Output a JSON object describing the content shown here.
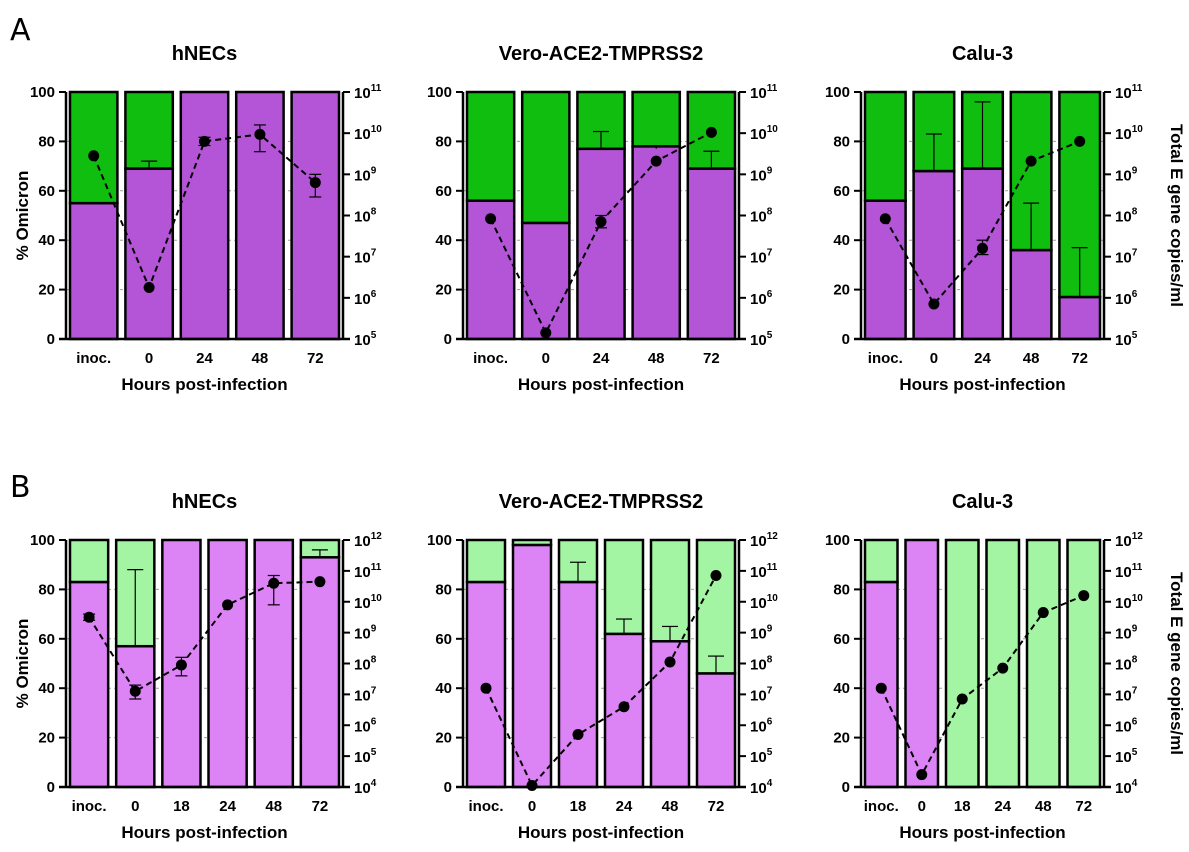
{
  "panels": [
    {
      "letter": "A"
    },
    {
      "letter": "B"
    }
  ],
  "colors": {
    "omicron_A": "#b355d6",
    "other_A": "#0fbe0f",
    "omicron_B": "#dc83f5",
    "other_B": "#a3f5a3",
    "copies_marker": "#000000"
  },
  "chart_data": [
    {
      "type": "bar",
      "panel": "A",
      "title": "hNECs",
      "xlabel": "Hours post-infection",
      "ylabel": "% Omicron",
      "y2label": "",
      "categories": [
        "inoc.",
        "0",
        "24",
        "48",
        "72"
      ],
      "ylim": [
        0,
        100
      ],
      "y2scale": "log",
      "y2lim_exponent": [
        5,
        11
      ],
      "y2_tick_labels": [
        "10^5",
        "10^6",
        "10^7",
        "10^8",
        "10^9",
        "10^10",
        "10^11"
      ],
      "grid": "dashed horizontal",
      "series": [
        {
          "values": [
            55,
            69,
            100,
            100,
            100
          ],
          "error_bars": [
            null,
            [
              69,
              72
            ],
            null,
            null,
            null
          ],
          "color": "omicron_A"
        },
        {
          "values": [
            45,
            31,
            0,
            0,
            0
          ],
          "color": "other_A"
        }
      ],
      "line": {
        "log10_values": [
          9.45,
          6.25,
          9.8,
          9.97,
          8.8
        ],
        "error_bars": [
          null,
          null,
          [
            9.7,
            9.9
          ],
          [
            9.55,
            10.2
          ],
          [
            8.45,
            9.0
          ]
        ]
      }
    },
    {
      "type": "bar",
      "panel": "A",
      "title": "Vero-ACE2-TMPRSS2",
      "xlabel": "Hours post-infection",
      "ylabel": "",
      "y2label": "",
      "categories": [
        "inoc.",
        "0",
        "24",
        "48",
        "72"
      ],
      "ylim": [
        0,
        100
      ],
      "y2scale": "log",
      "y2lim_exponent": [
        5,
        11
      ],
      "y2_tick_labels": [
        "10^5",
        "10^6",
        "10^7",
        "10^8",
        "10^9",
        "10^10",
        "10^11"
      ],
      "grid": "dashed horizontal",
      "series": [
        {
          "values": [
            56,
            47,
            77,
            78,
            69
          ],
          "error_bars": [
            null,
            null,
            [
              77,
              84
            ],
            [
              77,
              78
            ],
            [
              69,
              76
            ]
          ],
          "color": "omicron_A"
        },
        {
          "values": [
            44,
            53,
            23,
            22,
            31
          ],
          "color": "other_A"
        }
      ],
      "line": {
        "log10_values": [
          7.92,
          5.15,
          7.85,
          9.32,
          10.02
        ],
        "error_bars": [
          null,
          null,
          [
            7.7,
            8.0
          ],
          null,
          null
        ]
      }
    },
    {
      "type": "bar",
      "panel": "A",
      "title": "Calu-3",
      "xlabel": "Hours post-infection",
      "ylabel": "",
      "y2label": "Total E gene copies/ml",
      "categories": [
        "inoc.",
        "0",
        "24",
        "48",
        "72"
      ],
      "ylim": [
        0,
        100
      ],
      "y2scale": "log",
      "y2lim_exponent": [
        5,
        11
      ],
      "y2_tick_labels": [
        "10^5",
        "10^6",
        "10^7",
        "10^8",
        "10^9",
        "10^10",
        "10^11"
      ],
      "grid": "dashed horizontal",
      "series": [
        {
          "values": [
            56,
            68,
            69,
            36,
            17
          ],
          "error_bars": [
            null,
            [
              68,
              83
            ],
            [
              69,
              96
            ],
            [
              36,
              55
            ],
            [
              17,
              37
            ]
          ],
          "color": "omicron_A"
        },
        {
          "values": [
            44,
            32,
            31,
            64,
            83
          ],
          "color": "other_A"
        }
      ],
      "line": {
        "log10_values": [
          7.92,
          5.85,
          7.2,
          9.32,
          9.8
        ],
        "error_bars": [
          null,
          null,
          [
            7.05,
            7.4
          ],
          null,
          null
        ]
      }
    },
    {
      "type": "bar",
      "panel": "B",
      "title": "hNECs",
      "xlabel": "Hours post-infection",
      "ylabel": "% Omicron",
      "y2label": "",
      "categories": [
        "inoc.",
        "0",
        "18",
        "24",
        "48",
        "72"
      ],
      "ylim": [
        0,
        100
      ],
      "y2scale": "log",
      "y2lim_exponent": [
        4,
        12
      ],
      "y2_tick_labels": [
        "10^4",
        "10^5",
        "10^6",
        "10^7",
        "10^8",
        "10^9",
        "10^10",
        "10^11",
        "10^12"
      ],
      "grid": "dashed horizontal",
      "series": [
        {
          "values": [
            83,
            57,
            100,
            100,
            100,
            93
          ],
          "error_bars": [
            null,
            [
              57,
              88
            ],
            null,
            null,
            null,
            [
              93,
              96
            ]
          ],
          "color": "omicron_B"
        },
        {
          "values": [
            17,
            43,
            0,
            0,
            0,
            7
          ],
          "color": "other_B"
        }
      ],
      "line": {
        "log10_values": [
          9.5,
          7.1,
          7.95,
          9.9,
          10.6,
          10.65
        ],
        "error_bars": [
          [
            9.4,
            9.6
          ],
          [
            6.85,
            7.3
          ],
          [
            7.6,
            8.2
          ],
          null,
          [
            9.9,
            10.85
          ],
          null
        ]
      }
    },
    {
      "type": "bar",
      "panel": "B",
      "title": "Vero-ACE2-TMPRSS2",
      "xlabel": "Hours post-infection",
      "ylabel": "",
      "y2label": "",
      "categories": [
        "inoc.",
        "0",
        "18",
        "24",
        "48",
        "72"
      ],
      "ylim": [
        0,
        100
      ],
      "y2scale": "log",
      "y2lim_exponent": [
        4,
        12
      ],
      "y2_tick_labels": [
        "10^4",
        "10^5",
        "10^6",
        "10^7",
        "10^8",
        "10^9",
        "10^10",
        "10^11",
        "10^12"
      ],
      "grid": "dashed horizontal",
      "series": [
        {
          "values": [
            83,
            98,
            83,
            62,
            59,
            46
          ],
          "error_bars": [
            null,
            null,
            [
              83,
              91
            ],
            [
              62,
              68
            ],
            [
              59,
              65
            ],
            [
              46,
              53
            ]
          ],
          "color": "omicron_B"
        },
        {
          "values": [
            17,
            2,
            17,
            38,
            41,
            54
          ],
          "color": "other_B"
        }
      ],
      "line": {
        "log10_values": [
          7.2,
          4.05,
          5.7,
          6.6,
          8.05,
          10.85
        ],
        "error_bars": null
      }
    },
    {
      "type": "bar",
      "panel": "B",
      "title": "Calu-3",
      "xlabel": "Hours post-infection",
      "ylabel": "",
      "y2label": "Total E gene copies/ml",
      "categories": [
        "inoc.",
        "0",
        "18",
        "24",
        "48",
        "72"
      ],
      "ylim": [
        0,
        100
      ],
      "y2scale": "log",
      "y2lim_exponent": [
        4,
        12
      ],
      "y2_tick_labels": [
        "10^4",
        "10^5",
        "10^6",
        "10^7",
        "10^8",
        "10^9",
        "10^10",
        "10^11",
        "10^12"
      ],
      "grid": "dashed horizontal",
      "series": [
        {
          "values": [
            83,
            100,
            0,
            0,
            0,
            0
          ],
          "color": "omicron_B"
        },
        {
          "values": [
            17,
            0,
            100,
            100,
            100,
            100
          ],
          "color": "other_B"
        }
      ],
      "line": {
        "log10_values": [
          7.2,
          4.4,
          6.85,
          7.85,
          9.65,
          10.2
        ],
        "error_bars": null
      }
    }
  ]
}
